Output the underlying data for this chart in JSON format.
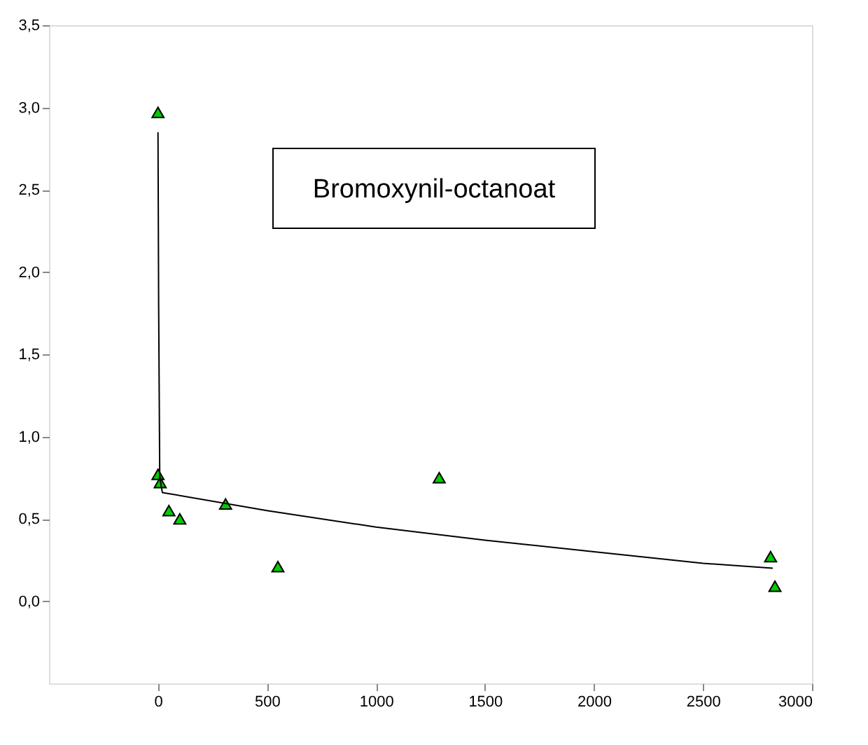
{
  "chart_data": {
    "type": "scatter",
    "annotations": [
      "Bromoxynil-octanoat"
    ],
    "xlim": [
      -500,
      3000
    ],
    "xticks": [
      0,
      500,
      1000,
      1500,
      2000,
      2500,
      3000
    ],
    "ylim": [
      -0.5,
      3.5
    ],
    "yticks": [
      {
        "value": 0,
        "label": "0,0"
      },
      {
        "value": 0.5,
        "label": "0,5"
      },
      {
        "value": 1,
        "label": "1,0"
      },
      {
        "value": 1.5,
        "label": "1,5"
      },
      {
        "value": 2,
        "label": "2,0"
      },
      {
        "value": 2.5,
        "label": "2,5"
      },
      {
        "value": 3,
        "label": "3,0"
      },
      {
        "value": 3.5,
        "label": "3,5"
      }
    ],
    "grid": false,
    "marker": "triangle",
    "series": [
      {
        "color": "#00cc00",
        "x": [
          0,
          0,
          10,
          50,
          100,
          310,
          550,
          1290,
          2810,
          2830
        ],
        "values": [
          2.97,
          0.77,
          0.72,
          0.55,
          0.5,
          0.59,
          0.21,
          0.75,
          0.27,
          0.09
        ]
      },
      {
        "type": "line",
        "color": "#000000",
        "marker": "none",
        "x": [
          0,
          3,
          8,
          20,
          500,
          1000,
          1500,
          2000,
          2500,
          2820
        ],
        "values": [
          2.85,
          1.8,
          0.75,
          0.66,
          0.55,
          0.45,
          0.37,
          0.3,
          0.23,
          0.2
        ]
      }
    ]
  }
}
